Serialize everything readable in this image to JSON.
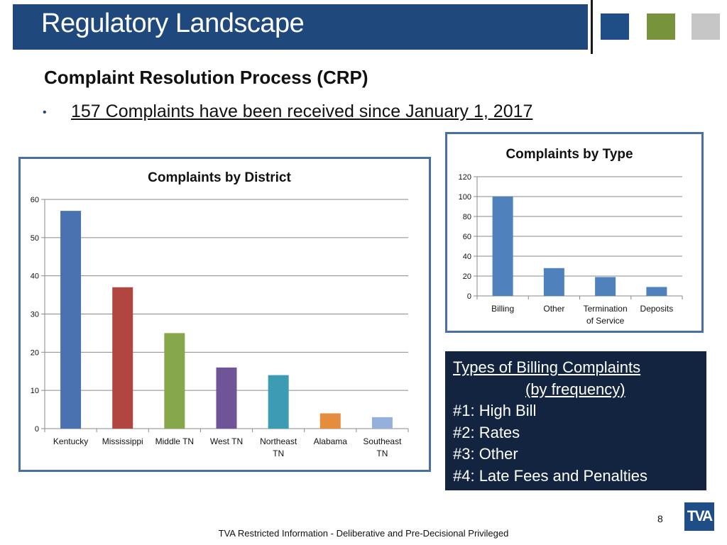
{
  "header": {
    "title": "Regulatory Landscape",
    "squares": [
      "#1f4e86",
      "#77933c",
      "#c6c6c6"
    ]
  },
  "section": {
    "subtitle": "Complaint Resolution Process (CRP)",
    "bullet": "157 Complaints have been received since January 1, 2017"
  },
  "chart_data": [
    {
      "type": "bar",
      "title": "Complaints by District",
      "categories": [
        "Kentucky",
        "Mississippi",
        "Middle TN",
        "West TN",
        "Northeast TN",
        "Alabama",
        "Southeast TN"
      ],
      "category_lines": [
        [
          "Kentucky"
        ],
        [
          "Mississippi"
        ],
        [
          "Middle TN"
        ],
        [
          "West TN"
        ],
        [
          "Northeast",
          "TN"
        ],
        [
          "Alabama"
        ],
        [
          "Southeast",
          "TN"
        ]
      ],
      "values": [
        57,
        37,
        25,
        16,
        14,
        4,
        3
      ],
      "colors": [
        "#4a72b0",
        "#b0463f",
        "#86a84b",
        "#6f5598",
        "#3d9bb3",
        "#e58d3e",
        "#95b0da"
      ],
      "ylim": [
        0,
        60
      ],
      "yticks": [
        0,
        10,
        20,
        30,
        40,
        50,
        60
      ],
      "grid": true,
      "xlabel": "",
      "ylabel": ""
    },
    {
      "type": "bar",
      "title": "Complaints by Type",
      "categories": [
        "Billing",
        "Other",
        "Termination of Service",
        "Deposits"
      ],
      "category_lines": [
        [
          "Billing"
        ],
        [
          "Other"
        ],
        [
          "Termination",
          "of Service"
        ],
        [
          "Deposits"
        ]
      ],
      "values": [
        100,
        28,
        19,
        9
      ],
      "colors": [
        "#4f81bd",
        "#4f81bd",
        "#4f81bd",
        "#4f81bd"
      ],
      "ylim": [
        0,
        120
      ],
      "yticks": [
        0,
        20,
        40,
        60,
        80,
        100,
        120
      ],
      "grid": true,
      "xlabel": "",
      "ylabel": ""
    }
  ],
  "billing_box": {
    "title": "Types of Billing Complaints",
    "subtitle": "(by frequency)",
    "items": [
      "#1: High Bill",
      "#2: Rates",
      "#3: Other",
      "#4: Late Fees and Penalties"
    ]
  },
  "footer": {
    "page_number": "8",
    "logo_text": "TVA",
    "disclaimer": "TVA Restricted Information - Deliberative and Pre-Decisional Privileged"
  }
}
